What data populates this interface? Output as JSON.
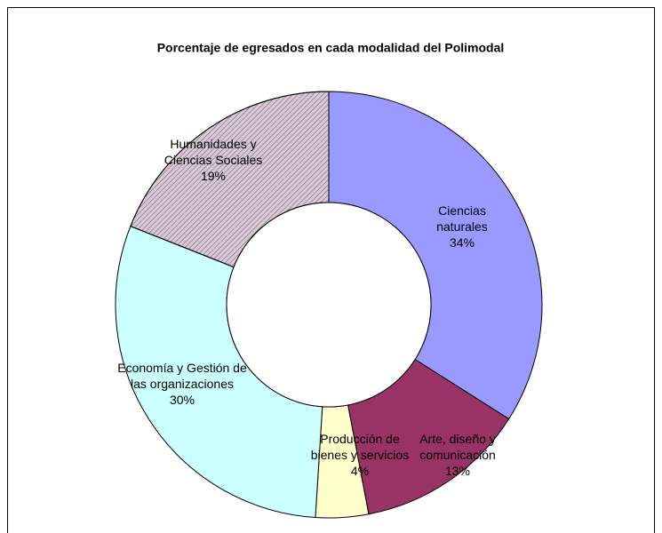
{
  "chart_data": {
    "type": "donut",
    "title": "Porcentaje de egresados en cada modalidad del Polimodal",
    "categories": [
      "Ciencias naturales",
      "Arte, diseño y comunicación",
      "Producción de bienes y servicios",
      "Economía y Gestión de las organizaciones",
      "Humanidades y Ciencias Sociales"
    ],
    "values": [
      34,
      13,
      4,
      30,
      19
    ],
    "value_labels": [
      "34%",
      "13%",
      "4%",
      "30%",
      "19%"
    ],
    "colors": [
      "#9999ff",
      "#993366",
      "#ffffcc",
      "#ccffff",
      "#d8c8d8"
    ]
  }
}
